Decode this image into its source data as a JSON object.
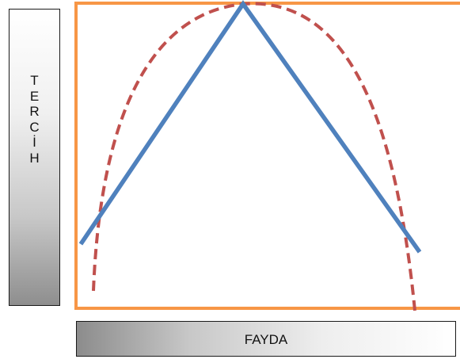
{
  "y_axis": {
    "label": "T\nE\nR\nC\nİ\nH"
  },
  "x_axis": {
    "label": "FAYDA"
  },
  "colors": {
    "frame": "#f79646",
    "solid_line": "#4f81bd",
    "dashed_curve": "#c0504d"
  }
}
